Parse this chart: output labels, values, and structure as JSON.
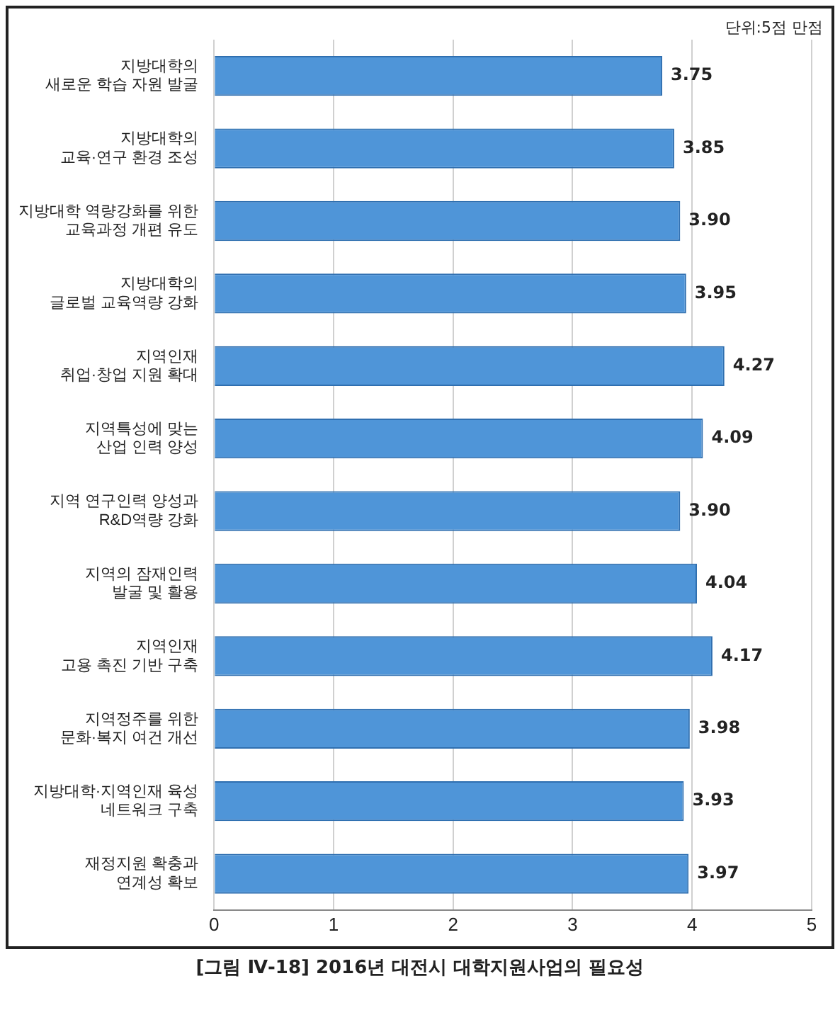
{
  "chart_data": {
    "type": "bar",
    "orientation": "horizontal",
    "title": "[그림 Ⅳ-18] 2016년 대전시 대학지원사업의 필요성",
    "annotations": [
      "단위:5점 만점"
    ],
    "categories": [
      "지방대학의\n새로운 학습 자원 발굴",
      "지방대학의\n교육·연구 환경 조성",
      "지방대학 역량강화를 위한\n교육과정 개편 유도",
      "지방대학의\n글로벌 교육역량 강화",
      "지역인재\n취업·창업 지원 확대",
      "지역특성에 맞는\n산업 인력 양성",
      "지역 연구인력 양성과\nR&D역량 강화",
      "지역의 잠재인력\n발굴 및 활용",
      "지역인재\n고용 촉진 기반 구축",
      "지역정주를 위한\n문화·복지 여건 개선",
      "지방대학·지역인재 육성\n네트워크 구축",
      "재정지원 확충과\n연계성 확보"
    ],
    "values": [
      3.75,
      3.85,
      3.9,
      3.95,
      4.27,
      4.09,
      3.9,
      4.04,
      4.17,
      3.98,
      3.93,
      3.97
    ],
    "value_labels": [
      "3.75",
      "3.85",
      "3.90",
      "3.95",
      "4.27",
      "4.09",
      "3.90",
      "4.04",
      "4.17",
      "3.98",
      "3.93",
      "3.97"
    ],
    "color": "#4f95d8",
    "xlim": [
      0,
      5
    ],
    "xticks": [
      0,
      1,
      2,
      3,
      4,
      5
    ],
    "grid": "x",
    "legend": false
  }
}
